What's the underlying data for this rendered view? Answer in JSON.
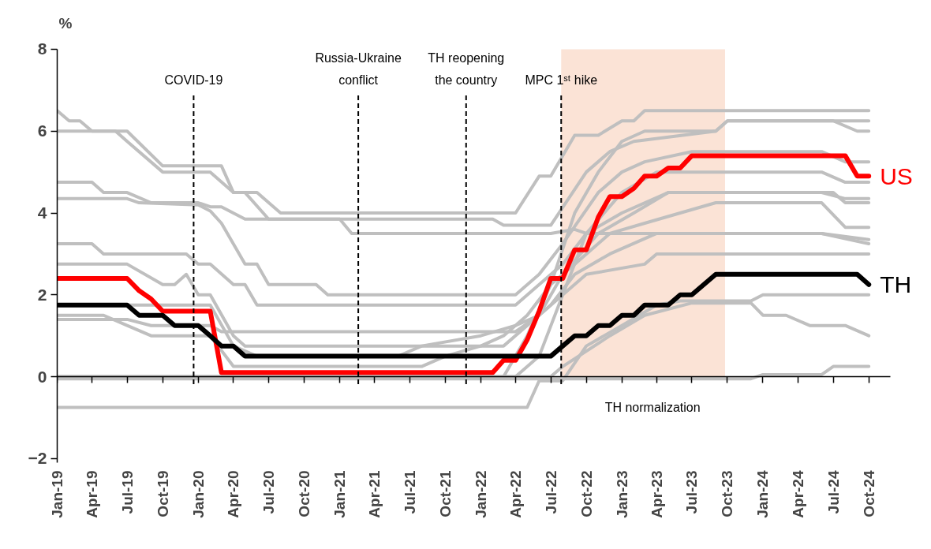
{
  "chart_data": {
    "type": "line",
    "ylabel": "%",
    "xlim": [
      "2019-01-01",
      "2024-11-25"
    ],
    "ylim": [
      -2.1,
      8
    ],
    "yticks": [
      -2,
      0,
      2,
      4,
      6,
      8
    ],
    "xticks": [
      {
        "value": "2019-01",
        "label": "Jan-19"
      },
      {
        "value": "2019-04",
        "label": "Apr-19"
      },
      {
        "value": "2019-07",
        "label": "Jul-19"
      },
      {
        "value": "2019-10",
        "label": "Oct-19"
      },
      {
        "value": "2020-01",
        "label": "Jan-20"
      },
      {
        "value": "2020-04",
        "label": "Apr-20"
      },
      {
        "value": "2020-07",
        "label": "Jul-20"
      },
      {
        "value": "2020-10",
        "label": "Oct-20"
      },
      {
        "value": "2021-01",
        "label": "Jan-21"
      },
      {
        "value": "2021-04",
        "label": "Apr-21"
      },
      {
        "value": "2021-07",
        "label": "Jul-21"
      },
      {
        "value": "2021-10",
        "label": "Oct-21"
      },
      {
        "value": "2022-01",
        "label": "Jan-22"
      },
      {
        "value": "2022-04",
        "label": "Apr-22"
      },
      {
        "value": "2022-07",
        "label": "Jul-22"
      },
      {
        "value": "2022-10",
        "label": "Oct-22"
      },
      {
        "value": "2023-01",
        "label": "Jan-23"
      },
      {
        "value": "2023-04",
        "label": "Apr-23"
      },
      {
        "value": "2023-07",
        "label": "Jul-23"
      },
      {
        "value": "2023-10",
        "label": "Oct-23"
      },
      {
        "value": "2024-01",
        "label": "Jan-24"
      },
      {
        "value": "2024-04",
        "label": "Apr-24"
      },
      {
        "value": "2024-07",
        "label": "Jul-24"
      },
      {
        "value": "2024-10",
        "label": "Oct-24"
      }
    ],
    "marker": "none",
    "line_style": "solid",
    "ref_lines": [
      {
        "axis": "x",
        "value": "2019-12-20",
        "label": "COVID-19",
        "line_style": "dashed",
        "color": "#000000"
      },
      {
        "axis": "x",
        "value": "2021-02-18",
        "label": "Russia-Ukraine\nconflict",
        "line_style": "dashed",
        "color": "#000000"
      },
      {
        "axis": "x",
        "value": "2021-11-24",
        "label": "TH reopening\nthe country",
        "line_style": "dashed",
        "color": "#000000"
      },
      {
        "axis": "x",
        "value": "2022-07-28",
        "label": "MPC 1ˢᵗ hike",
        "line_style": "dashed",
        "color": "#000000"
      }
    ],
    "bands": [
      {
        "axis": "x",
        "from": "2022-07-28",
        "to": "2023-09-25",
        "label": "TH normalization",
        "color": "#fbe3d6"
      }
    ],
    "series": [
      {
        "color": "#bfbfbf",
        "x": [
          "2019-01",
          "2019-02",
          "2019-03",
          "2019-04",
          "2019-06",
          "2019-07",
          "2019-10",
          "2020-02",
          "2020-04",
          "2020-06",
          "2020-08",
          "2022-04",
          "2022-06",
          "2022-07",
          "2022-09",
          "2022-11",
          "2023-01",
          "2023-02",
          "2023-03",
          "2024-10"
        ],
        "values": [
          6.5,
          6.25,
          6.25,
          6.0,
          6.0,
          5.75,
          5.0,
          5.0,
          4.5,
          4.5,
          4.0,
          4.0,
          4.9,
          4.9,
          5.9,
          5.9,
          6.25,
          6.25,
          6.5,
          6.5
        ]
      },
      {
        "color": "#bfbfbf",
        "x": [
          "2019-01",
          "2019-07",
          "2019-10",
          "2020-03",
          "2020-04",
          "2020-05",
          "2020-07",
          "2022-02",
          "2022-03",
          "2022-07",
          "2022-10",
          "2022-12",
          "2023-02",
          "2023-09",
          "2023-10",
          "2024-07",
          "2024-09",
          "2024-10"
        ],
        "values": [
          6.0,
          6.0,
          5.15,
          5.15,
          4.5,
          4.5,
          3.85,
          3.85,
          3.7,
          3.7,
          5.0,
          5.5,
          5.75,
          6.0,
          6.25,
          6.25,
          6.0,
          6.0
        ]
      },
      {
        "color": "#bfbfbf",
        "x": [
          "2019-01",
          "2019-04",
          "2019-05",
          "2019-07",
          "2019-09",
          "2020-01",
          "2020-02",
          "2020-03",
          "2020-05",
          "2021-01",
          "2021-02",
          "2022-07",
          "2022-09",
          "2022-10",
          "2024-06",
          "2024-10"
        ],
        "values": [
          4.75,
          4.75,
          4.5,
          4.5,
          4.25,
          4.25,
          4.15,
          4.15,
          3.85,
          3.85,
          3.5,
          3.5,
          3.6,
          3.5,
          3.5,
          3.25
        ]
      },
      {
        "color": "#bfbfbf",
        "x": [
          "2019-01",
          "2019-07",
          "2019-08",
          "2020-01",
          "2020-02",
          "2020-03",
          "2020-05",
          "2020-06",
          "2020-07",
          "2020-11",
          "2020-12",
          "2022-04",
          "2022-06",
          "2022-08",
          "2022-11",
          "2023-01",
          "2023-03",
          "2023-07",
          "2024-06",
          "2024-08",
          "2024-10"
        ],
        "values": [
          4.35,
          4.35,
          4.25,
          4.2,
          4.05,
          3.75,
          2.75,
          2.75,
          2.25,
          2.25,
          2.0,
          2.0,
          2.5,
          3.25,
          4.5,
          5.0,
          5.25,
          5.5,
          5.5,
          5.25,
          5.25
        ]
      },
      {
        "color": "#bfbfbf",
        "x": [
          "2019-01",
          "2019-04",
          "2019-05",
          "2019-12",
          "2020-01",
          "2020-02",
          "2020-04",
          "2020-05",
          "2020-06",
          "2022-04",
          "2022-06",
          "2022-08",
          "2022-10",
          "2023-01",
          "2023-05",
          "2024-07",
          "2024-08",
          "2024-10"
        ],
        "values": [
          3.25,
          3.25,
          3.0,
          3.0,
          2.75,
          2.75,
          2.25,
          2.25,
          1.75,
          1.75,
          2.25,
          2.75,
          3.5,
          4.0,
          4.5,
          4.5,
          4.25,
          4.25
        ]
      },
      {
        "color": "#bfbfbf",
        "x": [
          "2019-01",
          "2019-07",
          "2019-10",
          "2019-11",
          "2019-12",
          "2020-01",
          "2020-02",
          "2020-04",
          "2020-05",
          "2022-03",
          "2022-05",
          "2022-07",
          "2022-09",
          "2022-12",
          "2023-04",
          "2024-06",
          "2024-10"
        ],
        "values": [
          2.75,
          2.75,
          2.25,
          2.25,
          2.5,
          2.0,
          2.0,
          1.0,
          0.75,
          0.75,
          1.25,
          1.75,
          2.5,
          3.0,
          3.5,
          3.5,
          3.35
        ]
      },
      {
        "color": "#bfbfbf",
        "x": [
          "2019-01",
          "2019-05",
          "2019-07",
          "2019-09",
          "2020-02",
          "2020-04",
          "2021-08",
          "2021-10",
          "2022-01",
          "2022-03",
          "2022-05",
          "2022-07",
          "2022-09",
          "2022-12",
          "2023-03",
          "2023-06",
          "2023-09",
          "2024-06",
          "2024-08",
          "2024-10"
        ],
        "values": [
          1.5,
          1.5,
          1.25,
          1.0,
          1.0,
          0.25,
          0.25,
          0.5,
          0.75,
          1.0,
          1.5,
          2.25,
          2.75,
          3.5,
          3.75,
          4.0,
          4.25,
          4.25,
          3.65,
          3.65
        ]
      },
      {
        "color": "#bfbfbf",
        "x": [
          "2019-01",
          "2019-07",
          "2019-09",
          "2020-02",
          "2020-03",
          "2022-04",
          "2022-06",
          "2022-08",
          "2022-10",
          "2023-03",
          "2023-04",
          "2024-10"
        ],
        "values": [
          1.4,
          1.4,
          1.25,
          1.25,
          1.1,
          1.1,
          1.5,
          2.0,
          2.5,
          2.75,
          3.0,
          3.0
        ]
      },
      {
        "color": "#bfbfbf",
        "x": [
          "2019-01",
          "2020-02",
          "2020-04",
          "2020-06",
          "2021-06",
          "2021-08",
          "2022-01",
          "2022-04",
          "2022-06",
          "2022-08",
          "2022-11",
          "2023-02",
          "2023-05",
          "2024-06",
          "2024-08",
          "2024-10"
        ],
        "values": [
          1.75,
          1.75,
          0.75,
          0.5,
          0.5,
          0.75,
          1.0,
          1.25,
          1.5,
          2.5,
          3.5,
          4.0,
          4.5,
          4.5,
          4.35,
          4.35
        ]
      },
      {
        "color": "#bfbfbf",
        "x": [
          "2019-01",
          "2022-07",
          "2022-08",
          "2022-12",
          "2023-03",
          "2023-07",
          "2023-12",
          "2024-01",
          "2024-03",
          "2024-05",
          "2024-08",
          "2024-10"
        ],
        "values": [
          0.0,
          0.0,
          0.25,
          1.0,
          1.5,
          1.8,
          1.8,
          1.5,
          1.5,
          1.25,
          1.25,
          1.0
        ]
      },
      {
        "color": "#bfbfbf",
        "x": [
          "2019-01",
          "2023-12",
          "2024-01",
          "2024-06",
          "2024-07",
          "2024-10"
        ],
        "values": [
          -0.05,
          -0.05,
          0.05,
          0.05,
          0.25,
          0.25
        ]
      },
      {
        "color": "#bfbfbf",
        "x": [
          "2019-01",
          "2022-05",
          "2022-06",
          "2022-08",
          "2022-10",
          "2023-01",
          "2023-04",
          "2023-06",
          "2023-12",
          "2024-01",
          "2024-10"
        ],
        "values": [
          -0.75,
          -0.75,
          -0.1,
          -0.1,
          0.75,
          1.25,
          1.75,
          1.85,
          1.85,
          2.0,
          2.0
        ]
      },
      {
        "color": "#bfbfbf",
        "x": [
          "2019-01",
          "2022-03",
          "2022-05",
          "2022-07",
          "2022-09",
          "2022-11",
          "2023-01",
          "2023-03",
          "2023-09",
          "2023-10",
          "2024-10"
        ],
        "values": [
          0.0,
          0.0,
          1.0,
          2.25,
          4.0,
          5.0,
          5.75,
          6.0,
          6.0,
          6.25,
          6.25
        ]
      },
      {
        "color": "#bfbfbf",
        "x": [
          "2019-01",
          "2022-04",
          "2022-06",
          "2022-08",
          "2022-10",
          "2023-01",
          "2023-04",
          "2024-06",
          "2024-08",
          "2024-10"
        ],
        "values": [
          0.0,
          0.0,
          0.5,
          2.0,
          3.5,
          4.5,
          5.0,
          5.0,
          4.75,
          4.75
        ]
      },
      {
        "name": "US",
        "color": "#ff0000",
        "x": [
          "2019-01",
          "2019-07",
          "2019-08",
          "2019-09",
          "2019-10",
          "2020-02",
          "2020-03",
          "2022-02",
          "2022-03",
          "2022-04",
          "2022-05",
          "2022-06",
          "2022-07",
          "2022-08",
          "2022-09",
          "2022-10",
          "2022-11",
          "2022-12",
          "2023-01",
          "2023-02",
          "2023-03",
          "2023-04",
          "2023-05",
          "2023-06",
          "2023-07",
          "2024-08",
          "2024-09",
          "2024-10"
        ],
        "values": [
          2.4,
          2.4,
          2.1,
          1.9,
          1.6,
          1.6,
          0.1,
          0.1,
          0.4,
          0.4,
          0.9,
          1.6,
          2.4,
          2.4,
          3.1,
          3.1,
          3.9,
          4.4,
          4.4,
          4.6,
          4.9,
          4.9,
          5.1,
          5.1,
          5.4,
          5.4,
          4.9,
          4.9
        ]
      },
      {
        "name": "TH",
        "color": "#000000",
        "x": [
          "2019-01",
          "2019-07",
          "2019-08",
          "2019-10",
          "2019-11",
          "2020-01",
          "2020-02",
          "2020-03",
          "2020-04",
          "2020-05",
          "2022-07",
          "2022-08",
          "2022-09",
          "2022-10",
          "2022-11",
          "2022-12",
          "2023-01",
          "2023-02",
          "2023-03",
          "2023-05",
          "2023-06",
          "2023-07",
          "2023-08",
          "2023-09",
          "2024-09",
          "2024-10"
        ],
        "values": [
          1.75,
          1.75,
          1.5,
          1.5,
          1.25,
          1.25,
          1.0,
          0.75,
          0.75,
          0.5,
          0.5,
          0.75,
          1.0,
          1.0,
          1.25,
          1.25,
          1.5,
          1.5,
          1.75,
          1.75,
          2.0,
          2.0,
          2.25,
          2.5,
          2.5,
          2.25
        ]
      }
    ]
  }
}
